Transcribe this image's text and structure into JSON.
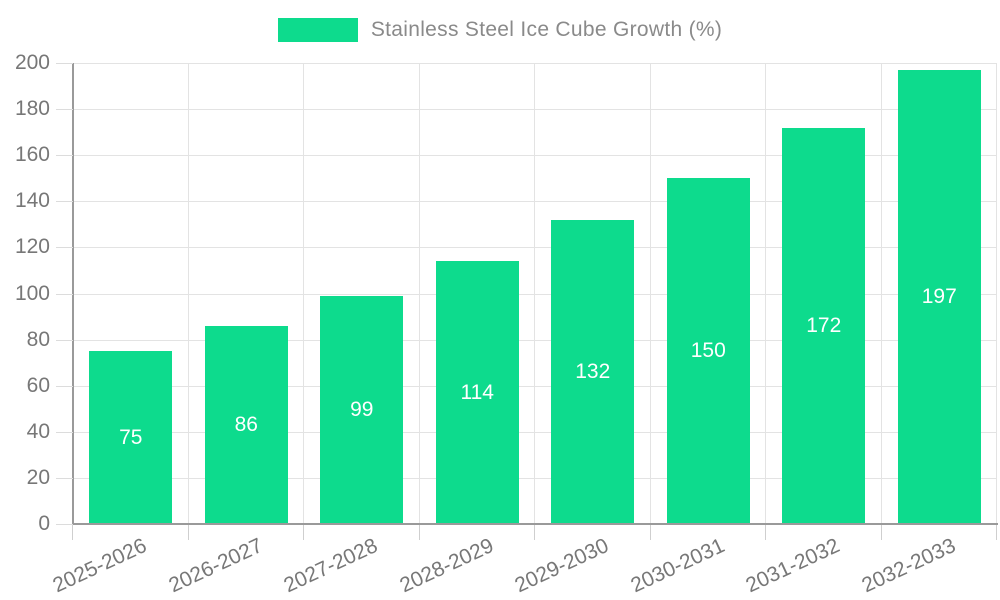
{
  "legend": {
    "label": "Stainless Steel Ice Cube Growth (%)"
  },
  "chart_data": {
    "type": "bar",
    "title": "Stainless Steel Ice Cube Growth (%)",
    "categories": [
      "2025-2026",
      "2026-2027",
      "2027-2028",
      "2028-2029",
      "2029-2030",
      "2030-2031",
      "2031-2032",
      "2032-2033"
    ],
    "series": [
      {
        "name": "Stainless Steel Ice Cube Growth (%)",
        "values": [
          75,
          86,
          99,
          114,
          132,
          150,
          172,
          197
        ]
      }
    ],
    "value_labels": [
      "75",
      "86",
      "99",
      "114",
      "132",
      "150",
      "172",
      "197"
    ],
    "xlabel": "",
    "ylabel": "",
    "ylim": [
      0,
      200
    ],
    "ytick_step": 20,
    "yticks": [
      0,
      20,
      40,
      60,
      80,
      100,
      120,
      140,
      160,
      180,
      200
    ],
    "grid": true,
    "legend_position": "top-center",
    "colors": {
      "bar": "#0ddb8d",
      "bar_value_text": "#ffffff",
      "axis_line": "#9a9a9a",
      "gridline": "#e3e3e3",
      "tick_text": "#777777",
      "legend_text": "#8a8a8a",
      "background": "#ffffff"
    }
  }
}
